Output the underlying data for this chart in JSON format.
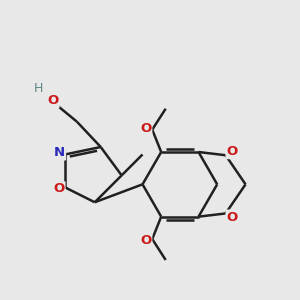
{
  "bg_color": "#e8e8e8",
  "bond_color": "#202020",
  "bond_width": 1.8,
  "atoms": {
    "N": {
      "color": "#2828bb"
    },
    "O": {
      "color": "#cc1a1a"
    },
    "H": {
      "color": "#5a8888"
    }
  },
  "figsize": [
    3.0,
    3.0
  ],
  "dpi": 100
}
